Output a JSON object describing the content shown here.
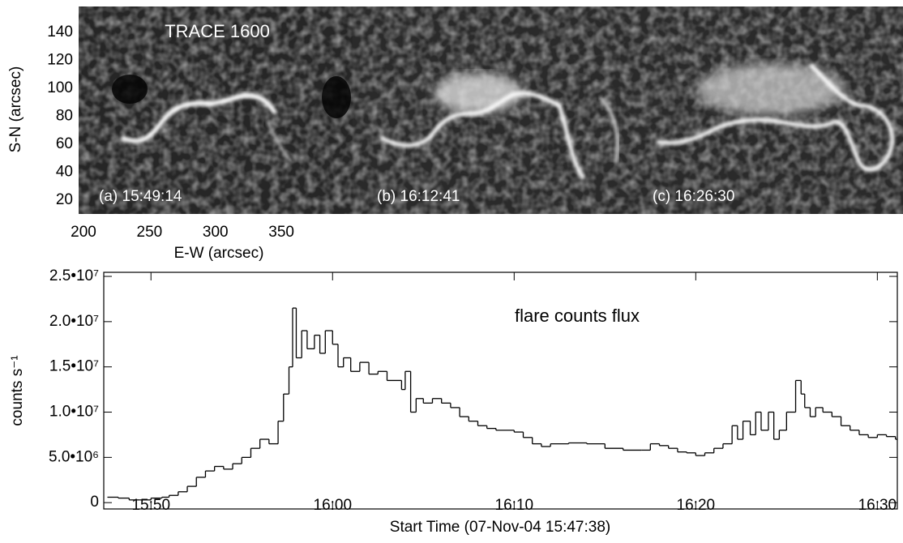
{
  "chart_data": [
    {
      "type": "image",
      "title": "TRACE 1600",
      "xlabel": "E-W (arcsec)",
      "ylabel": "S-N (arcsec)",
      "xlim": [
        196.3,
        404
      ],
      "xticks": [
        200,
        250,
        300,
        350
      ],
      "ylim": [
        10.1,
        158.5
      ],
      "yticks": [
        20,
        40,
        60,
        80,
        100,
        120,
        140
      ],
      "panels": [
        "(a) 15:49:14",
        "(b) 16:12:41",
        "(c) 16:26:30"
      ]
    },
    {
      "type": "step",
      "title": "flare counts flux",
      "xlabel": "Start Time (07-Nov-04 15:47:38)",
      "ylabel": "counts s⁻¹",
      "color": "#000000",
      "xlim": [
        947.4,
        991.1
      ],
      "xticks": [
        {
          "value": 950,
          "label": "15:50"
        },
        {
          "value": 960,
          "label": "16:00"
        },
        {
          "value": 970,
          "label": "16:10"
        },
        {
          "value": 980,
          "label": "16:20"
        },
        {
          "value": 990,
          "label": "16:30"
        }
      ],
      "ylim": [
        -700000,
        25450000
      ],
      "yticks": [
        0,
        {
          "value": 5000000,
          "label": "5.0•10⁶"
        },
        {
          "value": 10000000,
          "label": "1.0•10⁷"
        },
        {
          "value": 15000000,
          "label": "1.5•10⁷"
        },
        {
          "value": 20000000,
          "label": "2.0•10⁷"
        },
        {
          "value": 25000000,
          "label": "2.5•10⁷"
        }
      ],
      "x": [
        947.6,
        948.2,
        948.8,
        949.4,
        950.0,
        950.6,
        951.0,
        951.5,
        952.0,
        952.5,
        953.0,
        953.5,
        954.0,
        954.5,
        955.0,
        955.5,
        956.0,
        956.5,
        957.0,
        957.3,
        957.6,
        957.8,
        958.0,
        958.3,
        958.6,
        959.0,
        959.3,
        959.6,
        960.0,
        960.3,
        960.6,
        961.0,
        961.5,
        962.0,
        962.5,
        963.0,
        963.8,
        964.0,
        964.3,
        964.6,
        965.0,
        965.5,
        966.0,
        966.5,
        967.0,
        967.5,
        968.0,
        968.5,
        969.0,
        970.0,
        970.5,
        971.0,
        971.5,
        972.0,
        973.0,
        974.0,
        975.0,
        976.0,
        977.0,
        977.5,
        978.0,
        978.5,
        979.0,
        979.5,
        980.0,
        980.5,
        981.0,
        981.5,
        982.0,
        982.3,
        982.6,
        983.0,
        983.3,
        983.6,
        984.0,
        984.3,
        984.6,
        985.0,
        985.5,
        985.8,
        986.0,
        986.3,
        986.6,
        987.0,
        987.5,
        988.0,
        988.5,
        989.0,
        989.5,
        990.0,
        990.5,
        991.0
      ],
      "values": [
        600000,
        500000,
        300000,
        300000,
        500000,
        600000,
        800000,
        1200000,
        1800000,
        2800000,
        3500000,
        4000000,
        3700000,
        4300000,
        5000000,
        6000000,
        7000000,
        6500000,
        9000000,
        12000000,
        15000000,
        21500000,
        16000000,
        19000000,
        17000000,
        18500000,
        16500000,
        19000000,
        17500000,
        15000000,
        16000000,
        14500000,
        15500000,
        14200000,
        14500000,
        13500000,
        12500000,
        14500000,
        10000000,
        11500000,
        11000000,
        11500000,
        11000000,
        10500000,
        9500000,
        9000000,
        8500000,
        8200000,
        8000000,
        7800000,
        7200000,
        6500000,
        6200000,
        6500000,
        6600000,
        6500000,
        6000000,
        5800000,
        5800000,
        6500000,
        6300000,
        6000000,
        5600000,
        5500000,
        5200000,
        5500000,
        6000000,
        6500000,
        8500000,
        7000000,
        9000000,
        7500000,
        10000000,
        8000000,
        10000000,
        7000000,
        8000000,
        10000000,
        13500000,
        12000000,
        10500000,
        9500000,
        10500000,
        10000000,
        9500000,
        8500000,
        8000000,
        7500000,
        7200000,
        7500000,
        7300000,
        7000000
      ]
    }
  ]
}
